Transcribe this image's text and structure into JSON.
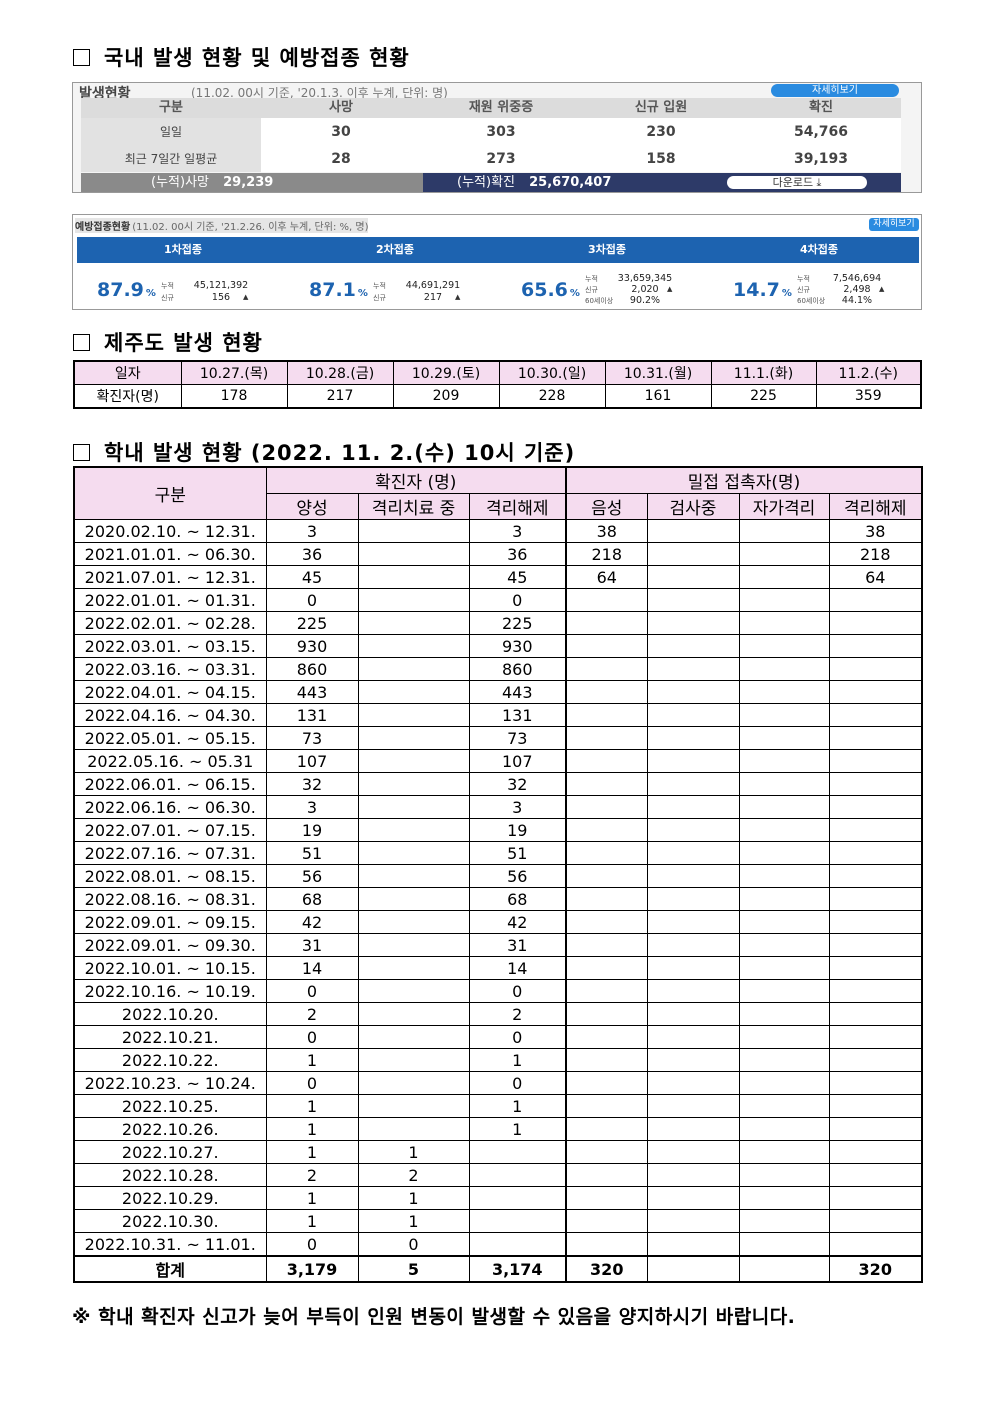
{
  "domestic": {
    "title": "국내 발생 현황 및 예방접종 현황",
    "outbreak": {
      "title": "발생현황",
      "subtitle": "(11.02. 00시 기준, '20.1.3. 이후 누계, 단위: 명)",
      "button": "자세히보기",
      "headers": [
        "구분",
        "사망",
        "재원 위중증",
        "신규 입원",
        "확진"
      ],
      "rows": [
        [
          "일일",
          "30",
          "303",
          "230",
          "54,766"
        ],
        [
          "최근 7일간 일평균",
          "28",
          "273",
          "158",
          "39,193"
        ]
      ],
      "cumulative_deaths_label": "(누적)사망",
      "cumulative_deaths": "29,239",
      "cumulative_cases_label": "(누적)확진",
      "cumulative_cases": "25,670,407",
      "download": "다운로드"
    },
    "vaccination": {
      "title": "예방접종현황",
      "subtitle": "(11.02. 00시 기준, '21.2.26. 이후 누계, 단위: %, 명)",
      "button": "자세히보기",
      "doses": [
        {
          "name": "1차접종",
          "rate": "87.9",
          "unit": "%",
          "items": [
            {
              "label": "누적",
              "value": "45,121,392"
            },
            {
              "label": "신규",
              "value": "156"
            }
          ]
        },
        {
          "name": "2차접종",
          "rate": "87.1",
          "unit": "%",
          "items": [
            {
              "label": "누적",
              "value": "44,691,291"
            },
            {
              "label": "신규",
              "value": "217"
            }
          ]
        },
        {
          "name": "3차접종",
          "rate": "65.6",
          "unit": "%",
          "items": [
            {
              "label": "누적",
              "value": "33,659,345"
            },
            {
              "label": "신규",
              "value": "2,020"
            },
            {
              "label": "60세이상",
              "value": "90.2%"
            }
          ]
        },
        {
          "name": "4차접종",
          "rate": "14.7",
          "unit": "%",
          "items": [
            {
              "label": "누적",
              "value": "7,546,694"
            },
            {
              "label": "신규",
              "value": "2,498"
            },
            {
              "label": "60세이상",
              "value": "44.1%"
            }
          ]
        }
      ]
    }
  },
  "jeju": {
    "title": "제주도 발생 현황",
    "table": {
      "rows": [
        [
          "일자",
          "10.27.(목)",
          "10.28.(금)",
          "10.29.(토)",
          "10.30.(일)",
          "10.31.(월)",
          "11.1.(화)",
          "11.2.(수)"
        ],
        [
          "확진자(명)",
          178,
          217,
          209,
          228,
          161,
          225,
          359
        ]
      ]
    }
  },
  "school": {
    "title": "학내 발생 현황 (2022. 11. 2.(수) 10시 기준)",
    "table": {
      "header_label": "구분",
      "group_headers": [
        "확진자 (명)",
        "밀접 접촉자(명)"
      ],
      "columns": [
        "양성",
        "격리치료 중",
        "격리해제",
        "음성",
        "검사중",
        "자가격리",
        "격리해제"
      ],
      "rows": [
        [
          "2020.02.10. ~ 12.31.",
          3,
          null,
          3,
          38,
          null,
          null,
          38
        ],
        [
          "2021.01.01. ~ 06.30.",
          36,
          null,
          36,
          218,
          null,
          null,
          218
        ],
        [
          "2021.07.01. ~ 12.31.",
          45,
          null,
          45,
          64,
          null,
          null,
          64
        ],
        [
          "2022.01.01. ~ 01.31.",
          0,
          null,
          0,
          null,
          null,
          null,
          null
        ],
        [
          "2022.02.01. ~ 02.28.",
          225,
          null,
          225,
          null,
          null,
          null,
          null
        ],
        [
          "2022.03.01. ~ 03.15.",
          930,
          null,
          930,
          null,
          null,
          null,
          null
        ],
        [
          "2022.03.16. ~ 03.31.",
          860,
          null,
          860,
          null,
          null,
          null,
          null
        ],
        [
          "2022.04.01. ~ 04.15.",
          443,
          null,
          443,
          null,
          null,
          null,
          null
        ],
        [
          "2022.04.16. ~ 04.30.",
          131,
          null,
          131,
          null,
          null,
          null,
          null
        ],
        [
          "2022.05.01. ~ 05.15.",
          73,
          null,
          73,
          null,
          null,
          null,
          null
        ],
        [
          "2022.05.16. ~ 05.31",
          107,
          null,
          107,
          null,
          null,
          null,
          null
        ],
        [
          "2022.06.01. ~ 06.15.",
          32,
          null,
          32,
          null,
          null,
          null,
          null
        ],
        [
          "2022.06.16. ~ 06.30.",
          3,
          null,
          3,
          null,
          null,
          null,
          null
        ],
        [
          "2022.07.01. ~ 07.15.",
          19,
          null,
          19,
          null,
          null,
          null,
          null
        ],
        [
          "2022.07.16. ~ 07.31.",
          51,
          null,
          51,
          null,
          null,
          null,
          null
        ],
        [
          "2022.08.01. ~ 08.15.",
          56,
          null,
          56,
          null,
          null,
          null,
          null
        ],
        [
          "2022.08.16. ~ 08.31.",
          68,
          null,
          68,
          null,
          null,
          null,
          null
        ],
        [
          "2022.09.01. ~ 09.15.",
          42,
          null,
          42,
          null,
          null,
          null,
          null
        ],
        [
          "2022.09.01. ~ 09.30.",
          31,
          null,
          31,
          null,
          null,
          null,
          null
        ],
        [
          "2022.10.01. ~ 10.15.",
          14,
          null,
          14,
          null,
          null,
          null,
          null
        ],
        [
          "2022.10.16. ~ 10.19.",
          0,
          null,
          0,
          null,
          null,
          null,
          null
        ],
        [
          "2022.10.20.",
          2,
          null,
          2,
          null,
          null,
          null,
          null
        ],
        [
          "2022.10.21.",
          0,
          null,
          0,
          null,
          null,
          null,
          null
        ],
        [
          "2022.10.22.",
          1,
          null,
          1,
          null,
          null,
          null,
          null
        ],
        [
          "2022.10.23. ~ 10.24.",
          0,
          null,
          0,
          null,
          null,
          null,
          null
        ],
        [
          "2022.10.25.",
          1,
          null,
          1,
          null,
          null,
          null,
          null
        ],
        [
          "2022.10.26.",
          1,
          null,
          1,
          null,
          null,
          null,
          null
        ],
        [
          "2022.10.27.",
          1,
          1,
          null,
          null,
          null,
          null,
          null
        ],
        [
          "2022.10.28.",
          2,
          2,
          null,
          null,
          null,
          null,
          null
        ],
        [
          "2022.10.29.",
          1,
          1,
          null,
          null,
          null,
          null,
          null
        ],
        [
          "2022.10.30.",
          1,
          1,
          null,
          null,
          null,
          null,
          null
        ],
        [
          "2022.10.31. ~ 11.01.",
          0,
          0,
          null,
          null,
          null,
          null,
          null
        ]
      ],
      "total": [
        "합계",
        "3,179",
        5,
        "3,174",
        320,
        null,
        null,
        320
      ]
    }
  },
  "note": "※ 학내 확진자 신고가 늦어 부득이 인원 변동이 발생할 수 있음을 양지하시기 바랍니다."
}
